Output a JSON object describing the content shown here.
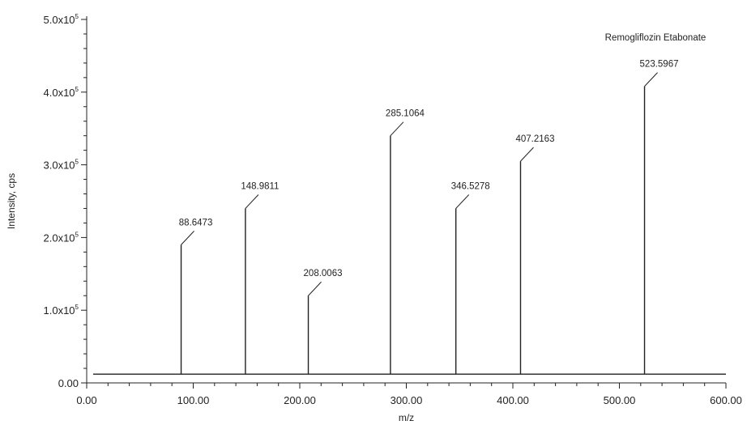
{
  "chart_data": {
    "type": "bar",
    "annotation": "Remogliflozin Etabonate",
    "xlabel": "m/z",
    "ylabel": "Intensity, cps",
    "xlim": [
      0,
      600
    ],
    "ylim": [
      0,
      500000
    ],
    "baseline": 12000,
    "x_ticks": [
      {
        "value": 0,
        "label": "0.00"
      },
      {
        "value": 100,
        "label": "100.00"
      },
      {
        "value": 200,
        "label": "200.00"
      },
      {
        "value": 300,
        "label": "300.00"
      },
      {
        "value": 400,
        "label": "400.00"
      },
      {
        "value": 500,
        "label": "500.00"
      },
      {
        "value": 600,
        "label": "600.00"
      }
    ],
    "y_ticks": [
      {
        "value": 0,
        "mantissa": "0.00",
        "exp": ""
      },
      {
        "value": 100000,
        "mantissa": "1.0x10",
        "exp": "5"
      },
      {
        "value": 200000,
        "mantissa": "2.0x10",
        "exp": "5"
      },
      {
        "value": 300000,
        "mantissa": "3.0x10",
        "exp": "5"
      },
      {
        "value": 400000,
        "mantissa": "4.0x10",
        "exp": "5"
      },
      {
        "value": 500000,
        "mantissa": "5.0x10",
        "exp": "5"
      }
    ],
    "peaks": [
      {
        "x": 88.6473,
        "y": 190000,
        "label": "88.6473"
      },
      {
        "x": 148.9811,
        "y": 240000,
        "label": "148.9811"
      },
      {
        "x": 208.0063,
        "y": 120000,
        "label": "208.0063"
      },
      {
        "x": 285.1064,
        "y": 340000,
        "label": "285.1064"
      },
      {
        "x": 346.5278,
        "y": 240000,
        "label": "346.5278"
      },
      {
        "x": 407.2163,
        "y": 305000,
        "label": "407.2163"
      },
      {
        "x": 523.5967,
        "y": 408000,
        "label": "523.5967"
      }
    ],
    "grid": false,
    "colors": {
      "line": "#222222",
      "background": "#ffffff"
    }
  }
}
